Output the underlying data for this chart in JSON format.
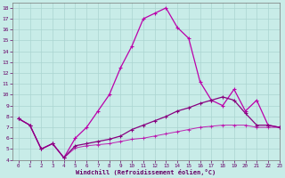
{
  "xlabel": "Windchill (Refroidissement éolien,°C)",
  "xlim": [
    -0.5,
    23
  ],
  "ylim": [
    4,
    18.5
  ],
  "xticks": [
    0,
    1,
    2,
    3,
    4,
    5,
    6,
    7,
    8,
    9,
    10,
    11,
    12,
    13,
    14,
    15,
    16,
    17,
    18,
    19,
    20,
    21,
    22,
    23
  ],
  "yticks": [
    4,
    5,
    6,
    7,
    8,
    9,
    10,
    11,
    12,
    13,
    14,
    15,
    16,
    17,
    18
  ],
  "bg_color": "#c8ece8",
  "grid_color": "#aad4d0",
  "line_color": "#bb00aa",
  "line_color_dark": "#880080",
  "curve1_x": [
    0,
    1,
    2,
    3,
    4,
    5,
    6,
    7,
    8,
    9,
    10,
    11,
    12,
    13,
    14,
    15,
    16,
    17,
    18,
    19,
    20,
    21,
    22,
    23
  ],
  "curve1_y": [
    7.8,
    7.2,
    5.0,
    5.5,
    4.2,
    6.0,
    7.0,
    8.5,
    10.0,
    12.5,
    14.5,
    17.0,
    17.5,
    18.0,
    16.2,
    15.2,
    11.2,
    9.5,
    9.0,
    10.5,
    8.5,
    9.5,
    7.2,
    7.0
  ],
  "curve2_x": [
    0,
    1,
    2,
    3,
    4,
    5,
    6,
    7,
    8,
    9,
    10,
    11,
    12,
    13,
    14,
    15,
    16,
    17,
    18,
    19,
    20,
    21,
    22,
    23
  ],
  "curve2_y": [
    7.8,
    7.2,
    5.0,
    5.5,
    4.2,
    5.3,
    5.5,
    5.7,
    5.9,
    6.2,
    6.8,
    7.2,
    7.6,
    8.0,
    8.5,
    8.8,
    9.2,
    9.5,
    9.8,
    9.5,
    8.3,
    7.2,
    7.2,
    7.0
  ],
  "curve3_x": [
    0,
    1,
    2,
    3,
    4,
    5,
    6,
    7,
    8,
    9,
    10,
    11,
    12,
    13,
    14,
    15,
    16,
    17,
    18,
    19,
    20,
    21,
    22,
    23
  ],
  "curve3_y": [
    7.8,
    7.2,
    5.0,
    5.5,
    4.2,
    5.1,
    5.3,
    5.4,
    5.5,
    5.7,
    5.9,
    6.0,
    6.2,
    6.4,
    6.6,
    6.8,
    7.0,
    7.1,
    7.2,
    7.2,
    7.2,
    7.0,
    7.0,
    7.0
  ]
}
